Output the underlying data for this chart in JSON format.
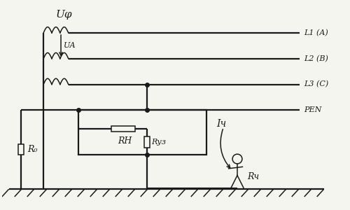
{
  "bg_color": "#f5f5f0",
  "line_color": "#1a1a1a",
  "lw": 1.6,
  "lw_thin": 1.1,
  "fig_w": 5.0,
  "fig_h": 3.0,
  "labels": {
    "Uphi": "Uφ",
    "Ua": "UА",
    "L1": "L1 (A)",
    "L2": "L2 (B)",
    "L3": "L3 (C)",
    "PEN": "PEN",
    "R0": "R₀",
    "RH": "RН",
    "Ruz": "Rуз",
    "Ih": "Iч",
    "Rh": "Rч"
  }
}
